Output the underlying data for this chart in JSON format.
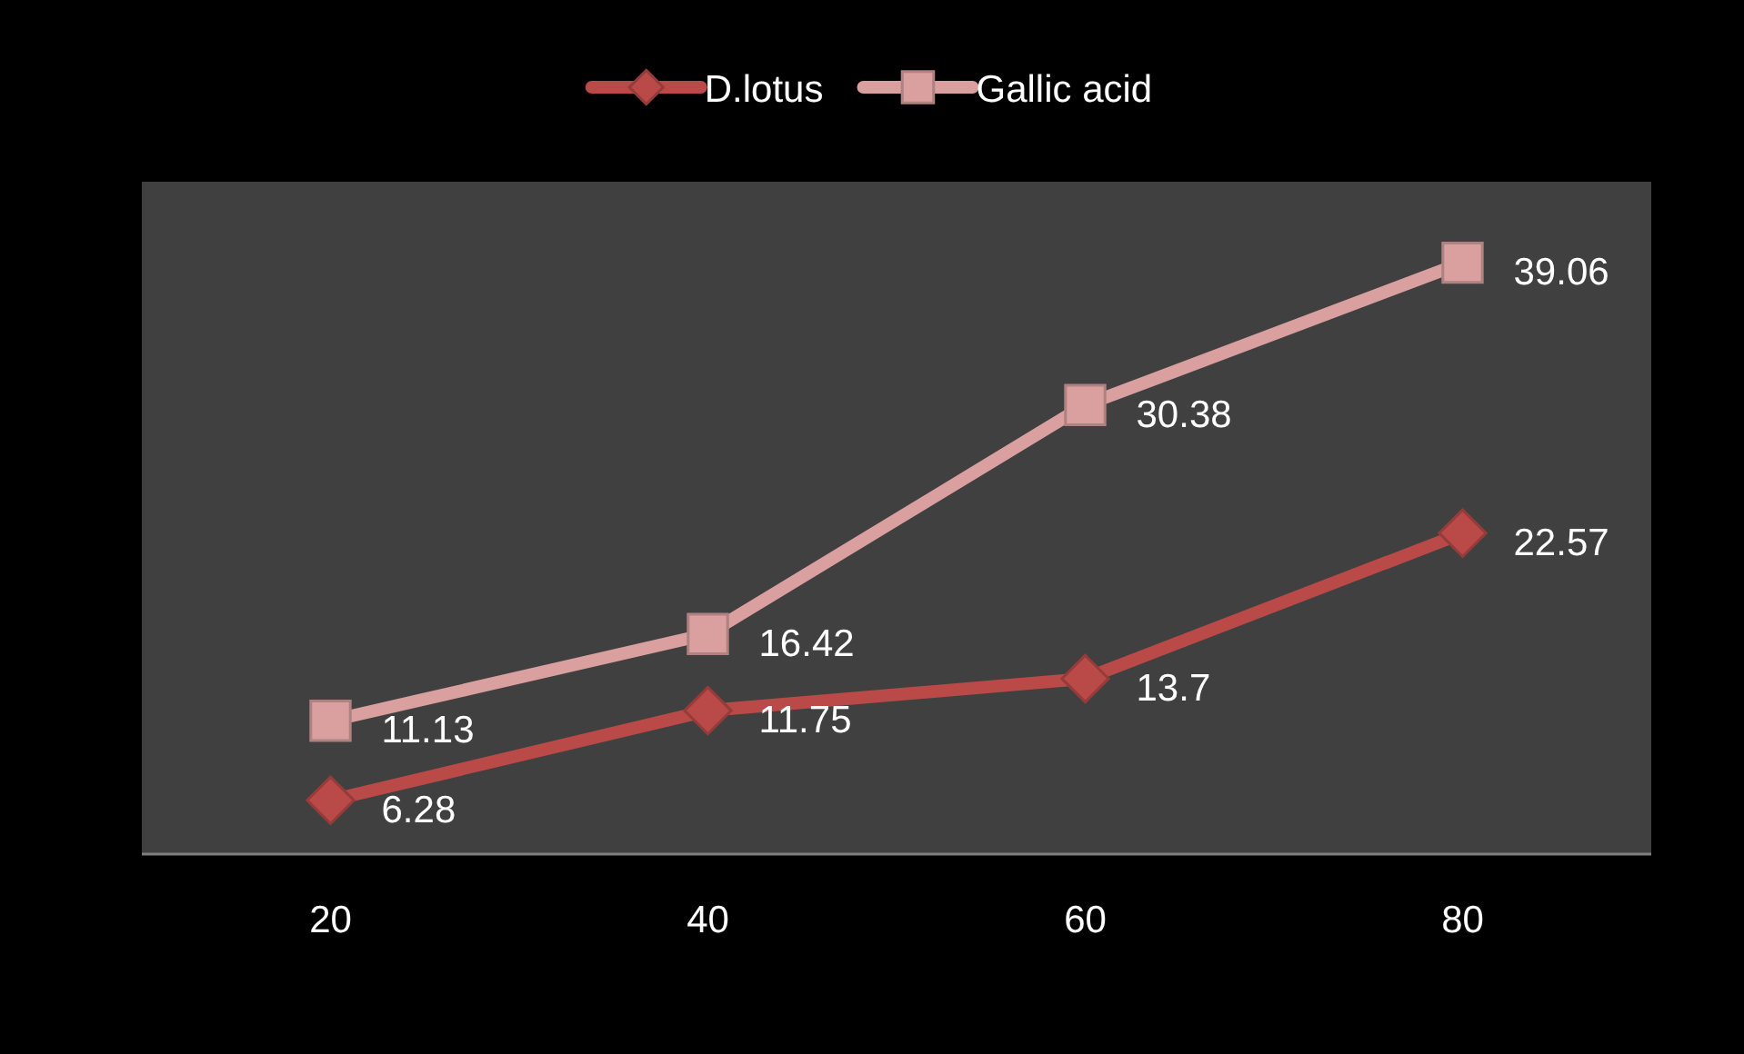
{
  "chart_data": {
    "type": "line",
    "categories": [
      "20",
      "40",
      "60",
      "80"
    ],
    "series": [
      {
        "name": "D.lotus",
        "color": "#b94a48",
        "marker": "diamond",
        "values": [
          6.28,
          11.75,
          13.7,
          22.57
        ]
      },
      {
        "name": "Gallic acid",
        "color": "#d9a09f",
        "marker": "square",
        "values": [
          11.13,
          16.42,
          30.38,
          39.06
        ]
      }
    ],
    "ylim": [
      3,
      44
    ],
    "data_labels": true,
    "legend": "top",
    "tick_labels": "x"
  }
}
